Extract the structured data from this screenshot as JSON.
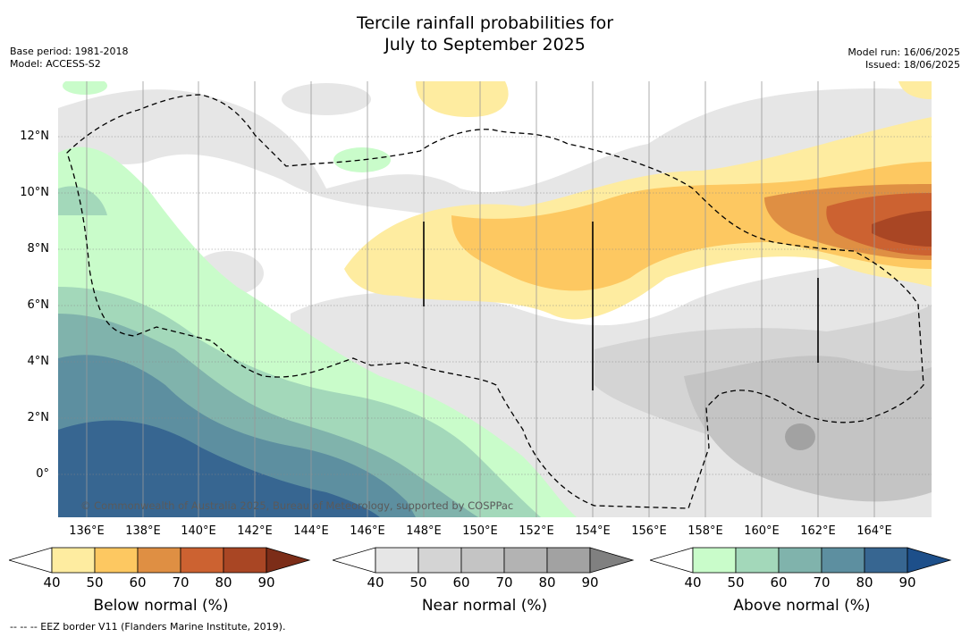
{
  "header": {
    "title_line1": "Tercile rainfall probabilities for",
    "title_line2": "July to September 2025",
    "base_period": "Base period: 1981-2018",
    "model": "Model: ACCESS-S2",
    "model_run": "Model run: 16/06/2025",
    "issued": "Issued: 18/06/2025"
  },
  "map": {
    "copyright": "© Commonwealth of Australia 2025, Bureau of Meteorology, supported by COSPPac",
    "lat_labels": [
      "12°N",
      "10°N",
      "8°N",
      "6°N",
      "4°N",
      "2°N",
      "0°"
    ],
    "lon_labels": [
      "136°E",
      "138°E",
      "140°E",
      "142°E",
      "144°E",
      "146°E",
      "148°E",
      "150°E",
      "152°E",
      "154°E",
      "156°E",
      "158°E",
      "160°E",
      "162°E",
      "164°E"
    ]
  },
  "legend": {
    "below": {
      "title": "Below normal (%)",
      "ticks": [
        "40",
        "50",
        "60",
        "70",
        "80",
        "90"
      ],
      "colors": [
        "#ffffff",
        "#feeca0",
        "#fdc861",
        "#df8f43",
        "#cc6231",
        "#a94624",
        "#7c2d18"
      ]
    },
    "near": {
      "title": "Near normal (%)",
      "ticks": [
        "40",
        "50",
        "60",
        "70",
        "80",
        "90"
      ],
      "colors": [
        "#ffffff",
        "#e6e6e6",
        "#d4d4d4",
        "#c4c4c4",
        "#b3b3b3",
        "#a2a2a2",
        "#808080"
      ]
    },
    "above": {
      "title": "Above normal (%)",
      "ticks": [
        "40",
        "50",
        "60",
        "70",
        "80",
        "90"
      ],
      "colors": [
        "#ffffff",
        "#c9fcca",
        "#a3d8ba",
        "#80b3ac",
        "#5d8fa0",
        "#376691",
        "#1d4f8a"
      ]
    }
  },
  "footer": {
    "eez_note": "-- -- -- EEZ border V11 (Flanders Marine Institute, 2019)."
  }
}
